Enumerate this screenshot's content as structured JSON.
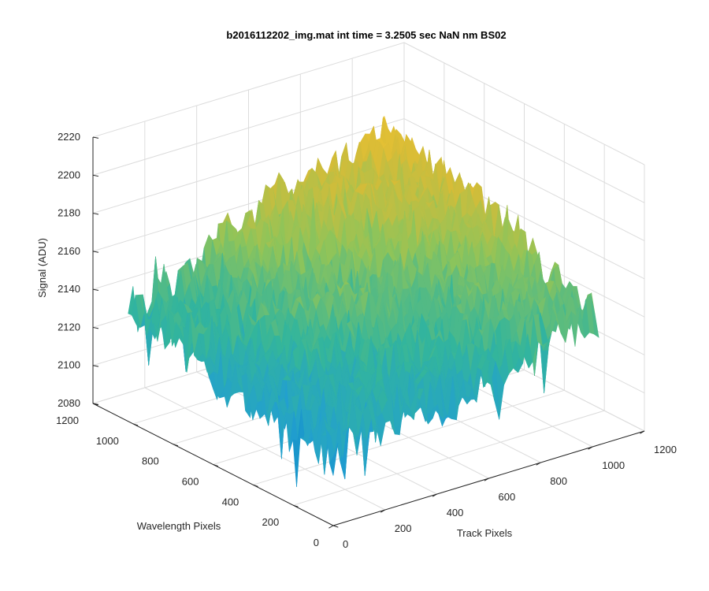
{
  "chart_data": {
    "type": "surface",
    "title": "b2016112202_img.mat int time = 3.2505 sec  NaN nm BS02",
    "xlabel": "Track Pixels",
    "ylabel": "Wavelength Pixels",
    "zlabel": "Signal (ADU)",
    "xlim": [
      0,
      1200
    ],
    "ylim": [
      0,
      1200
    ],
    "zlim": [
      2080,
      2220
    ],
    "x_ticks": [
      0,
      200,
      400,
      600,
      800,
      1000,
      1200
    ],
    "y_ticks": [
      0,
      200,
      400,
      600,
      800,
      1000,
      1200
    ],
    "z_ticks": [
      2080,
      2100,
      2120,
      2140,
      2160,
      2180,
      2200,
      2220
    ],
    "data_extent": {
      "x": [
        0,
        1024
      ],
      "y": [
        0,
        1024
      ]
    },
    "surface_profile": {
      "corner_x0_y0": 2118,
      "corner_xmax_y0": 2145,
      "corner_x0_ymax": 2140,
      "corner_xmax_ymax": 2195,
      "noise_amplitude": 12
    },
    "colormap": [
      "#0072BD",
      "#22A0CF",
      "#33B59C",
      "#8EC45A",
      "#D7BC37",
      "#F4C531"
    ],
    "grid": true,
    "view": {
      "azimuth": -37.5,
      "elevation": 30
    }
  }
}
